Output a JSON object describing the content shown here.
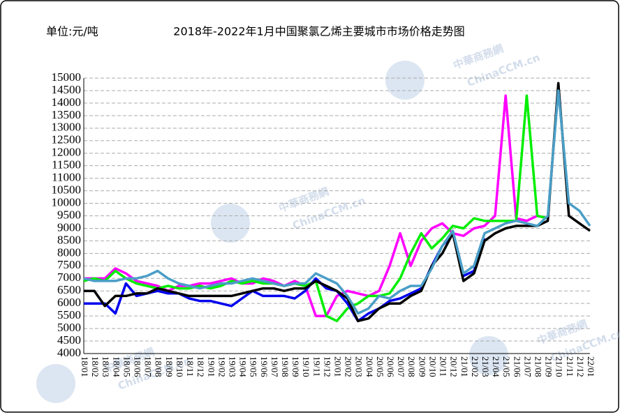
{
  "chart_data": {
    "type": "line",
    "unit_label": "单位:元/吨",
    "title": "2018年-2022年1月中国聚氯乙烯主要城市市场价格走势图",
    "watermark": "中華商務網",
    "watermark_sub": "ChinaCCM.cn",
    "categories": [
      "18/01",
      "18/02",
      "18/03",
      "18/04",
      "18/05",
      "18/06",
      "18/07",
      "18/08",
      "18/09",
      "18/10",
      "18/11",
      "18/12",
      "19/01",
      "19/02",
      "19/03",
      "19/04",
      "19/05",
      "19/06",
      "19/07",
      "19/08",
      "19/09",
      "19/10",
      "19/11",
      "19/12",
      "20/01",
      "20/02",
      "20/03",
      "20/04",
      "20/05",
      "20/06",
      "20/07",
      "20/08",
      "20/09",
      "20/10",
      "20/11",
      "20/12",
      "21/01",
      "21/02",
      "21/03",
      "21/04",
      "21/05",
      "21/06",
      "21/07",
      "21/08",
      "21/09",
      "21/10",
      "21/11",
      "21/12",
      "22/01"
    ],
    "series": [
      {
        "color": "#ff00ff",
        "values": [
          7000,
          7000,
          7000,
          7400,
          7200,
          6900,
          6800,
          6700,
          6500,
          6700,
          6700,
          6800,
          6800,
          6900,
          7000,
          6800,
          6800,
          7000,
          6900,
          6700,
          6900,
          6700,
          5500,
          5500,
          6300,
          6500,
          6400,
          6300,
          6500,
          7500,
          8800,
          7500,
          8500,
          9000,
          9200,
          8800,
          8700,
          9000,
          9100,
          9500,
          14300,
          9400,
          9300,
          9500,
          9400,
          null,
          null,
          null,
          null
        ]
      },
      {
        "color": "#00ee00",
        "values": [
          6900,
          7000,
          6900,
          7300,
          7000,
          6800,
          6700,
          6600,
          6700,
          6600,
          6600,
          6700,
          6600,
          6700,
          6900,
          6800,
          6900,
          6800,
          6800,
          6700,
          6800,
          6700,
          6900,
          5500,
          5300,
          5800,
          6000,
          6300,
          6300,
          6400,
          7000,
          8000,
          8800,
          8200,
          8600,
          9100,
          9000,
          9400,
          9300,
          9300,
          9300,
          9300,
          14300,
          9500,
          9400,
          null,
          null,
          null,
          null
        ]
      },
      {
        "color": "#0000ee",
        "values": [
          6000,
          6000,
          6000,
          5600,
          6800,
          6300,
          6400,
          6500,
          6400,
          6400,
          6200,
          6100,
          6100,
          6000,
          5900,
          6200,
          6500,
          6300,
          6300,
          6300,
          6200,
          6500,
          7000,
          6600,
          6500,
          6000,
          5300,
          5600,
          5800,
          6100,
          6200,
          6400,
          6600,
          7500,
          8300,
          8800,
          7100,
          7300,
          8600,
          null,
          null,
          null,
          null,
          null,
          null,
          null,
          null,
          null,
          null
        ]
      },
      {
        "color": "#000000",
        "values": [
          6500,
          6500,
          5900,
          6300,
          6300,
          6400,
          6400,
          6600,
          6500,
          6400,
          6300,
          6300,
          6300,
          6300,
          6300,
          6400,
          6500,
          6600,
          6600,
          6500,
          6600,
          6600,
          6900,
          6700,
          6500,
          6200,
          5300,
          5400,
          5800,
          6000,
          6000,
          6300,
          6500,
          7500,
          8000,
          8800,
          6900,
          7200,
          8500,
          8800,
          9000,
          9100,
          9100,
          9100,
          9300,
          14800,
          9500,
          9200,
          8900
        ]
      },
      {
        "color": "#4a9ec7",
        "values": [
          7000,
          6900,
          6900,
          6900,
          7000,
          7000,
          7100,
          7300,
          7000,
          6800,
          6700,
          6600,
          6700,
          6800,
          6800,
          6900,
          7000,
          6900,
          6800,
          6700,
          6800,
          6800,
          7200,
          7000,
          6800,
          6300,
          5600,
          5800,
          6300,
          6200,
          6500,
          6700,
          6700,
          7400,
          8300,
          8900,
          7200,
          7500,
          8800,
          9000,
          9200,
          9300,
          9200,
          9100,
          9500,
          14500,
          10000,
          9700,
          9100
        ]
      }
    ],
    "ylim": [
      4000,
      15000
    ],
    "yticks": [
      4000,
      4500,
      5000,
      5500,
      6000,
      6500,
      7000,
      7500,
      8000,
      8500,
      9000,
      9500,
      10000,
      10500,
      11000,
      11500,
      12000,
      12500,
      13000,
      13500,
      14000,
      14500,
      15000
    ],
    "grid": true
  }
}
